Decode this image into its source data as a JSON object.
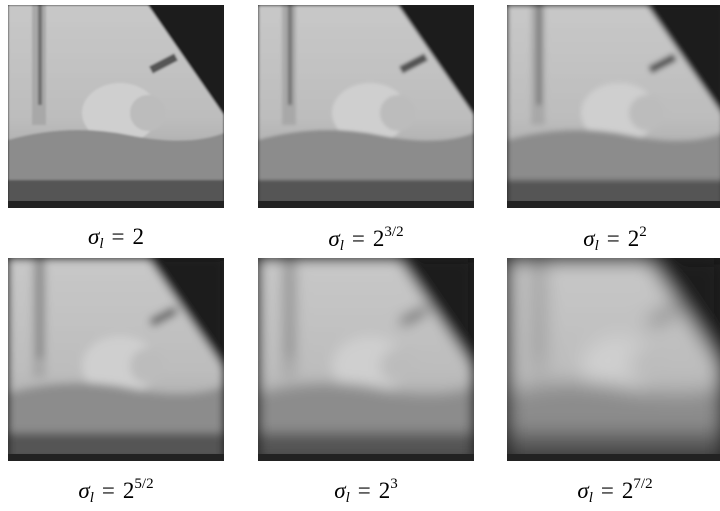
{
  "panels": [
    {
      "symbol": "σ",
      "subscript": "l",
      "relation": "=",
      "base": "2"
    },
    {
      "symbol": "σ",
      "subscript": "l",
      "relation": "=",
      "base": "2",
      "exponent": "3/2"
    },
    {
      "symbol": "σ",
      "subscript": "l",
      "relation": "=",
      "base": "2",
      "exponent": "2"
    },
    {
      "symbol": "σ",
      "subscript": "l",
      "relation": "=",
      "base": "2",
      "exponent": "5/2"
    },
    {
      "symbol": "σ",
      "subscript": "l",
      "relation": "=",
      "base": "2",
      "exponent": "3"
    },
    {
      "symbol": "σ",
      "subscript": "l",
      "relation": "=",
      "base": "2",
      "exponent": "7/2"
    }
  ]
}
